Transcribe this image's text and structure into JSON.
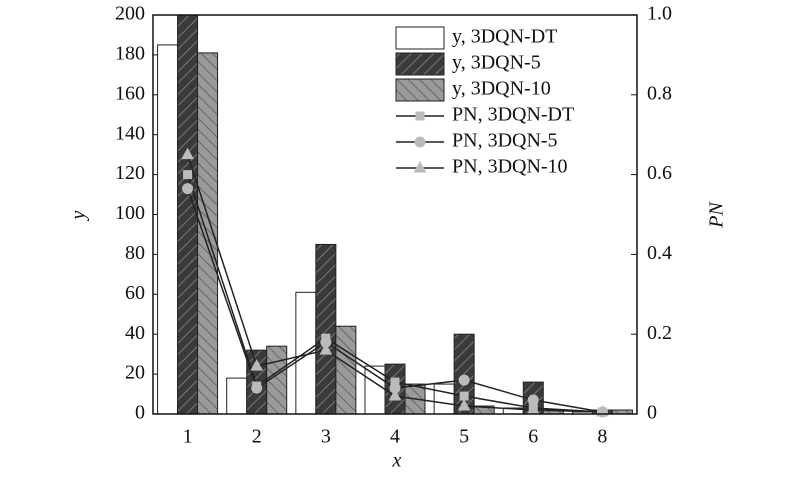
{
  "chart_data": {
    "type": "bar",
    "categories": [
      "1",
      "2",
      "3",
      "4",
      "5",
      "6",
      "8"
    ],
    "xlabel": "x",
    "ylabel": "y",
    "y2label": "PN",
    "ylim": [
      0,
      200
    ],
    "yticks": [
      0,
      20,
      40,
      60,
      80,
      100,
      120,
      140,
      160,
      180,
      200
    ],
    "y2lim": [
      0,
      1
    ],
    "y2ticks": [
      0,
      0.2,
      0.4,
      0.6,
      0.8,
      {
        "value": 1,
        "label": "1.0"
      }
    ],
    "legend": "top-right",
    "series": [
      {
        "name": "y, 3DQN-DT",
        "type": "bar",
        "color": "#ffffff",
        "hatch": "none",
        "values": [
          185,
          18,
          61,
          24,
          15,
          3,
          1
        ]
      },
      {
        "name": "y, 3DQN-5",
        "type": "bar",
        "color": "#3a3a3a",
        "hatch": "dark",
        "values": [
          200,
          32,
          85,
          25,
          40,
          16,
          2
        ]
      },
      {
        "name": "y, 3DQN-10",
        "type": "bar",
        "color": "#9a9a9a",
        "hatch": "light",
        "values": [
          181,
          34,
          44,
          15,
          4,
          2,
          2
        ]
      },
      {
        "name": "PN, 3DQN-DT",
        "type": "line",
        "axis": "y2",
        "color": "#222222",
        "marker": "square",
        "values": [
          0.6,
          0.07,
          0.19,
          0.08,
          0.045,
          0.015,
          0.005
        ]
      },
      {
        "name": "PN, 3DQN-5",
        "type": "line",
        "axis": "y2",
        "color": "#222222",
        "marker": "circle",
        "values": [
          0.565,
          0.065,
          0.18,
          0.065,
          0.085,
          0.035,
          0.005
        ]
      },
      {
        "name": "PN, 3DQN-10",
        "type": "line",
        "axis": "y2",
        "color": "#222222",
        "marker": "triangle",
        "values": [
          0.65,
          0.12,
          0.16,
          0.045,
          0.02,
          0.01,
          0.005
        ]
      }
    ]
  }
}
